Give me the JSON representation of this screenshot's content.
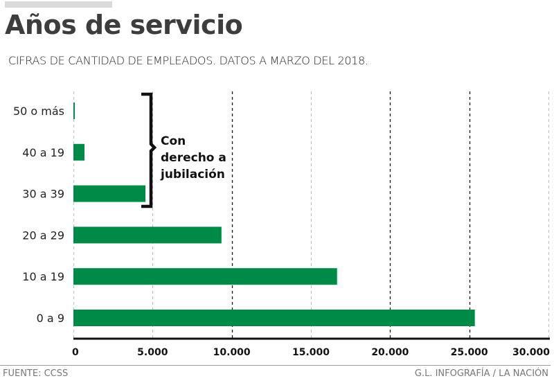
{
  "header": {
    "title": "Años de servicio",
    "subtitle": "CIFRAS DE CANTIDAD DE EMPLEADOS. DATOS A MARZO DEL 2018."
  },
  "footer": {
    "source": "FUENTE: CCSS",
    "credit": "G.L. INFOGRAFÍA / LA NACIÓN"
  },
  "colors": {
    "bar": "#008a47",
    "grid_light": "#bbbbbb",
    "grid_dark": "#111111",
    "axis": "#111111",
    "title": "#3d3d3d"
  },
  "chart_data": {
    "type": "bar",
    "orientation": "horizontal",
    "title": "Años de servicio",
    "subtitle": "CIFRAS DE CANTIDAD DE EMPLEADOS. DATOS A MARZO DEL 2018.",
    "xlabel": "",
    "ylabel": "",
    "categories": [
      "50 o más",
      "40 a 19",
      "30 a 39",
      "20 a 29",
      "10 a 19",
      "0 a 9"
    ],
    "values": [
      70,
      700,
      4550,
      9350,
      16650,
      25350
    ],
    "xlim": [
      0,
      30000
    ],
    "xticks": [
      0,
      5000,
      10000,
      15000,
      20000,
      25000,
      30000
    ],
    "xtick_labels": [
      "0",
      "5.000",
      "10.000",
      "15.000",
      "20.000",
      "25.000",
      "30.000"
    ],
    "grid": true,
    "dark_gridlines_at": [
      10000,
      20000,
      25000
    ],
    "annotation": {
      "text_lines": [
        "Con",
        "derecho a",
        "jubilación"
      ],
      "brackets_categories": [
        "50 o más",
        "40 a 19",
        "30 a 39"
      ]
    }
  }
}
